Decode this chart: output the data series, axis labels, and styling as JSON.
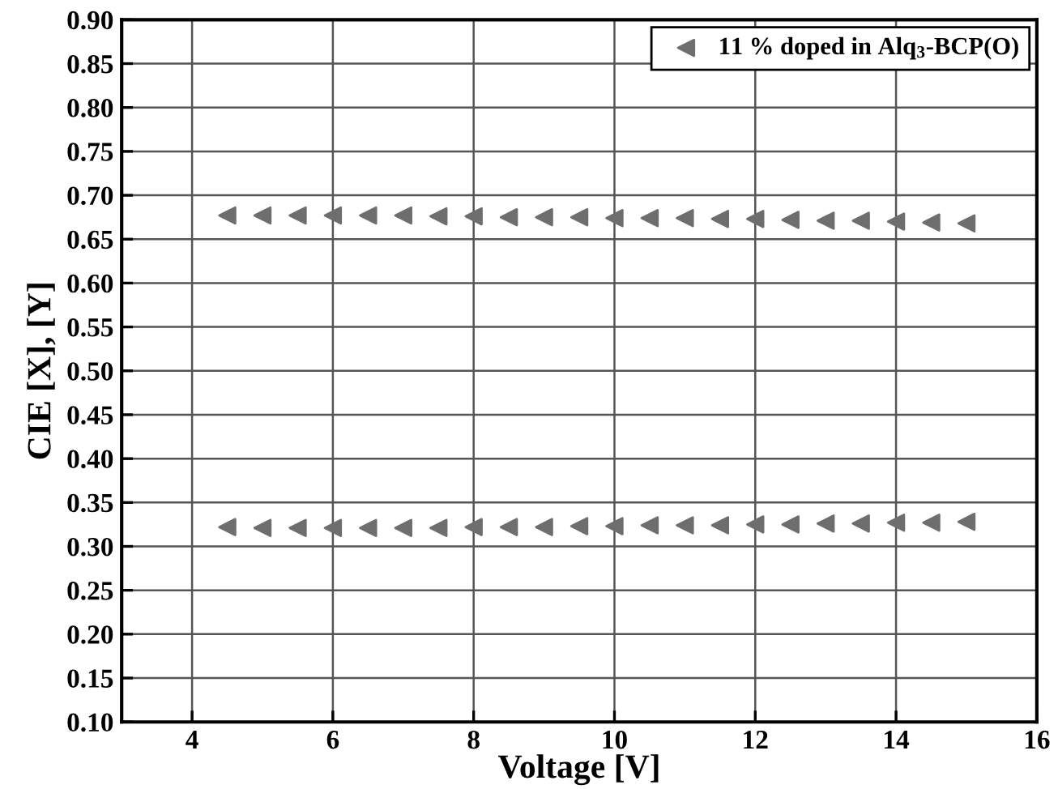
{
  "chart_data": {
    "type": "scatter",
    "xlabel": "Voltage [V]",
    "ylabel": "CIE [X], [Y]",
    "xlim": [
      3,
      16
    ],
    "xticks": [
      4,
      6,
      8,
      10,
      12,
      14,
      16
    ],
    "ylim": [
      0.1,
      0.9
    ],
    "yticks": [
      {
        "value": 0.1,
        "label": "0.10"
      },
      {
        "value": 0.15,
        "label": "0.15"
      },
      {
        "value": 0.2,
        "label": "0.20"
      },
      {
        "value": 0.25,
        "label": "0.25"
      },
      {
        "value": 0.3,
        "label": "0.30"
      },
      {
        "value": 0.35,
        "label": "0.35"
      },
      {
        "value": 0.4,
        "label": "0.40"
      },
      {
        "value": 0.45,
        "label": "0.45"
      },
      {
        "value": 0.5,
        "label": "0.50"
      },
      {
        "value": 0.55,
        "label": "0.55"
      },
      {
        "value": 0.6,
        "label": "0.60"
      },
      {
        "value": 0.65,
        "label": "0.65"
      },
      {
        "value": 0.7,
        "label": "0.70"
      },
      {
        "value": 0.75,
        "label": "0.75"
      },
      {
        "value": 0.8,
        "label": "0.80"
      },
      {
        "value": 0.85,
        "label": "0.85"
      },
      {
        "value": 0.9,
        "label": "0.90"
      }
    ],
    "x": [
      4.5,
      5,
      5.5,
      6,
      6.5,
      7,
      7.5,
      8,
      8.5,
      9,
      9.5,
      10,
      10.5,
      11,
      11.5,
      12,
      12.5,
      13,
      13.5,
      14,
      14.5,
      15
    ],
    "grid": true,
    "legend": "top right",
    "marker": "triangle",
    "series": [
      {
        "name": "11 % doped in Alq$_{3}$-BCP(O)",
        "color": "#6e6e6e",
        "values": [
          0.677,
          0.677,
          0.677,
          0.677,
          0.677,
          0.677,
          0.676,
          0.676,
          0.675,
          0.675,
          0.675,
          0.674,
          0.674,
          0.674,
          0.673,
          0.673,
          0.672,
          0.671,
          0.671,
          0.67,
          0.669,
          0.668
        ]
      },
      {
        "color": "#6e6e6e",
        "values": [
          0.322,
          0.321,
          0.321,
          0.321,
          0.321,
          0.321,
          0.321,
          0.322,
          0.322,
          0.322,
          0.323,
          0.323,
          0.324,
          0.324,
          0.324,
          0.325,
          0.325,
          0.326,
          0.326,
          0.327,
          0.327,
          0.328
        ]
      }
    ]
  }
}
